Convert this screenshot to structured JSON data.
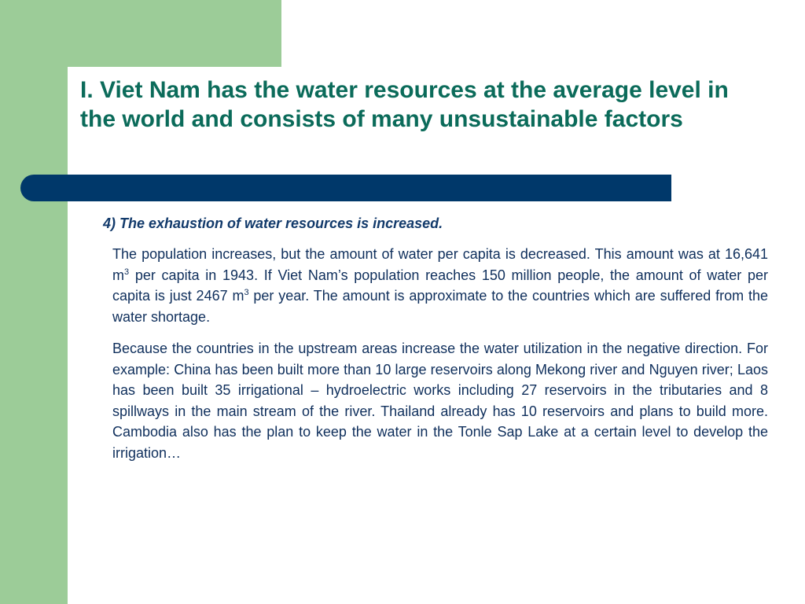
{
  "colors": {
    "accent_green": "#9ccc98",
    "title_teal": "#0b6b5a",
    "divider_navy": "#00386a",
    "subheading_navy": "#123a6b",
    "body_navy": "#0f2f5c"
  },
  "slide": {
    "title": "I. Viet Nam has the water resources at the average level in the world and consists of many unsustainable factors",
    "subheading": "4) The exhaustion of water resources is increased.",
    "paragraph1": {
      "part1": "The population increases, but the amount of water per capita is decreased. This amount was at 16,641 m",
      "sup1": "3",
      "part2": " per capita in 1943. If Viet Nam’s population reaches 150 million people, the amount of water per capita is just 2467 m",
      "sup2": "3",
      "part3": " per year. The amount is approximate to the countries which are suffered from the water shortage."
    },
    "paragraph2": "Because the countries in the upstream areas increase the water utilization in the negative direction. For example: China has been built more than 10 large reservoirs along Mekong river and Nguyen river; Laos has been built 35 irrigational – hydroelectric works including 27 reservoirs in the tributaries and 8 spillways in the main stream of the river. Thailand already has 10 reservoirs and plans to build more. Cambodia also has the plan to keep the water in the Tonle Sap Lake at a certain level to develop the irrigation…"
  }
}
